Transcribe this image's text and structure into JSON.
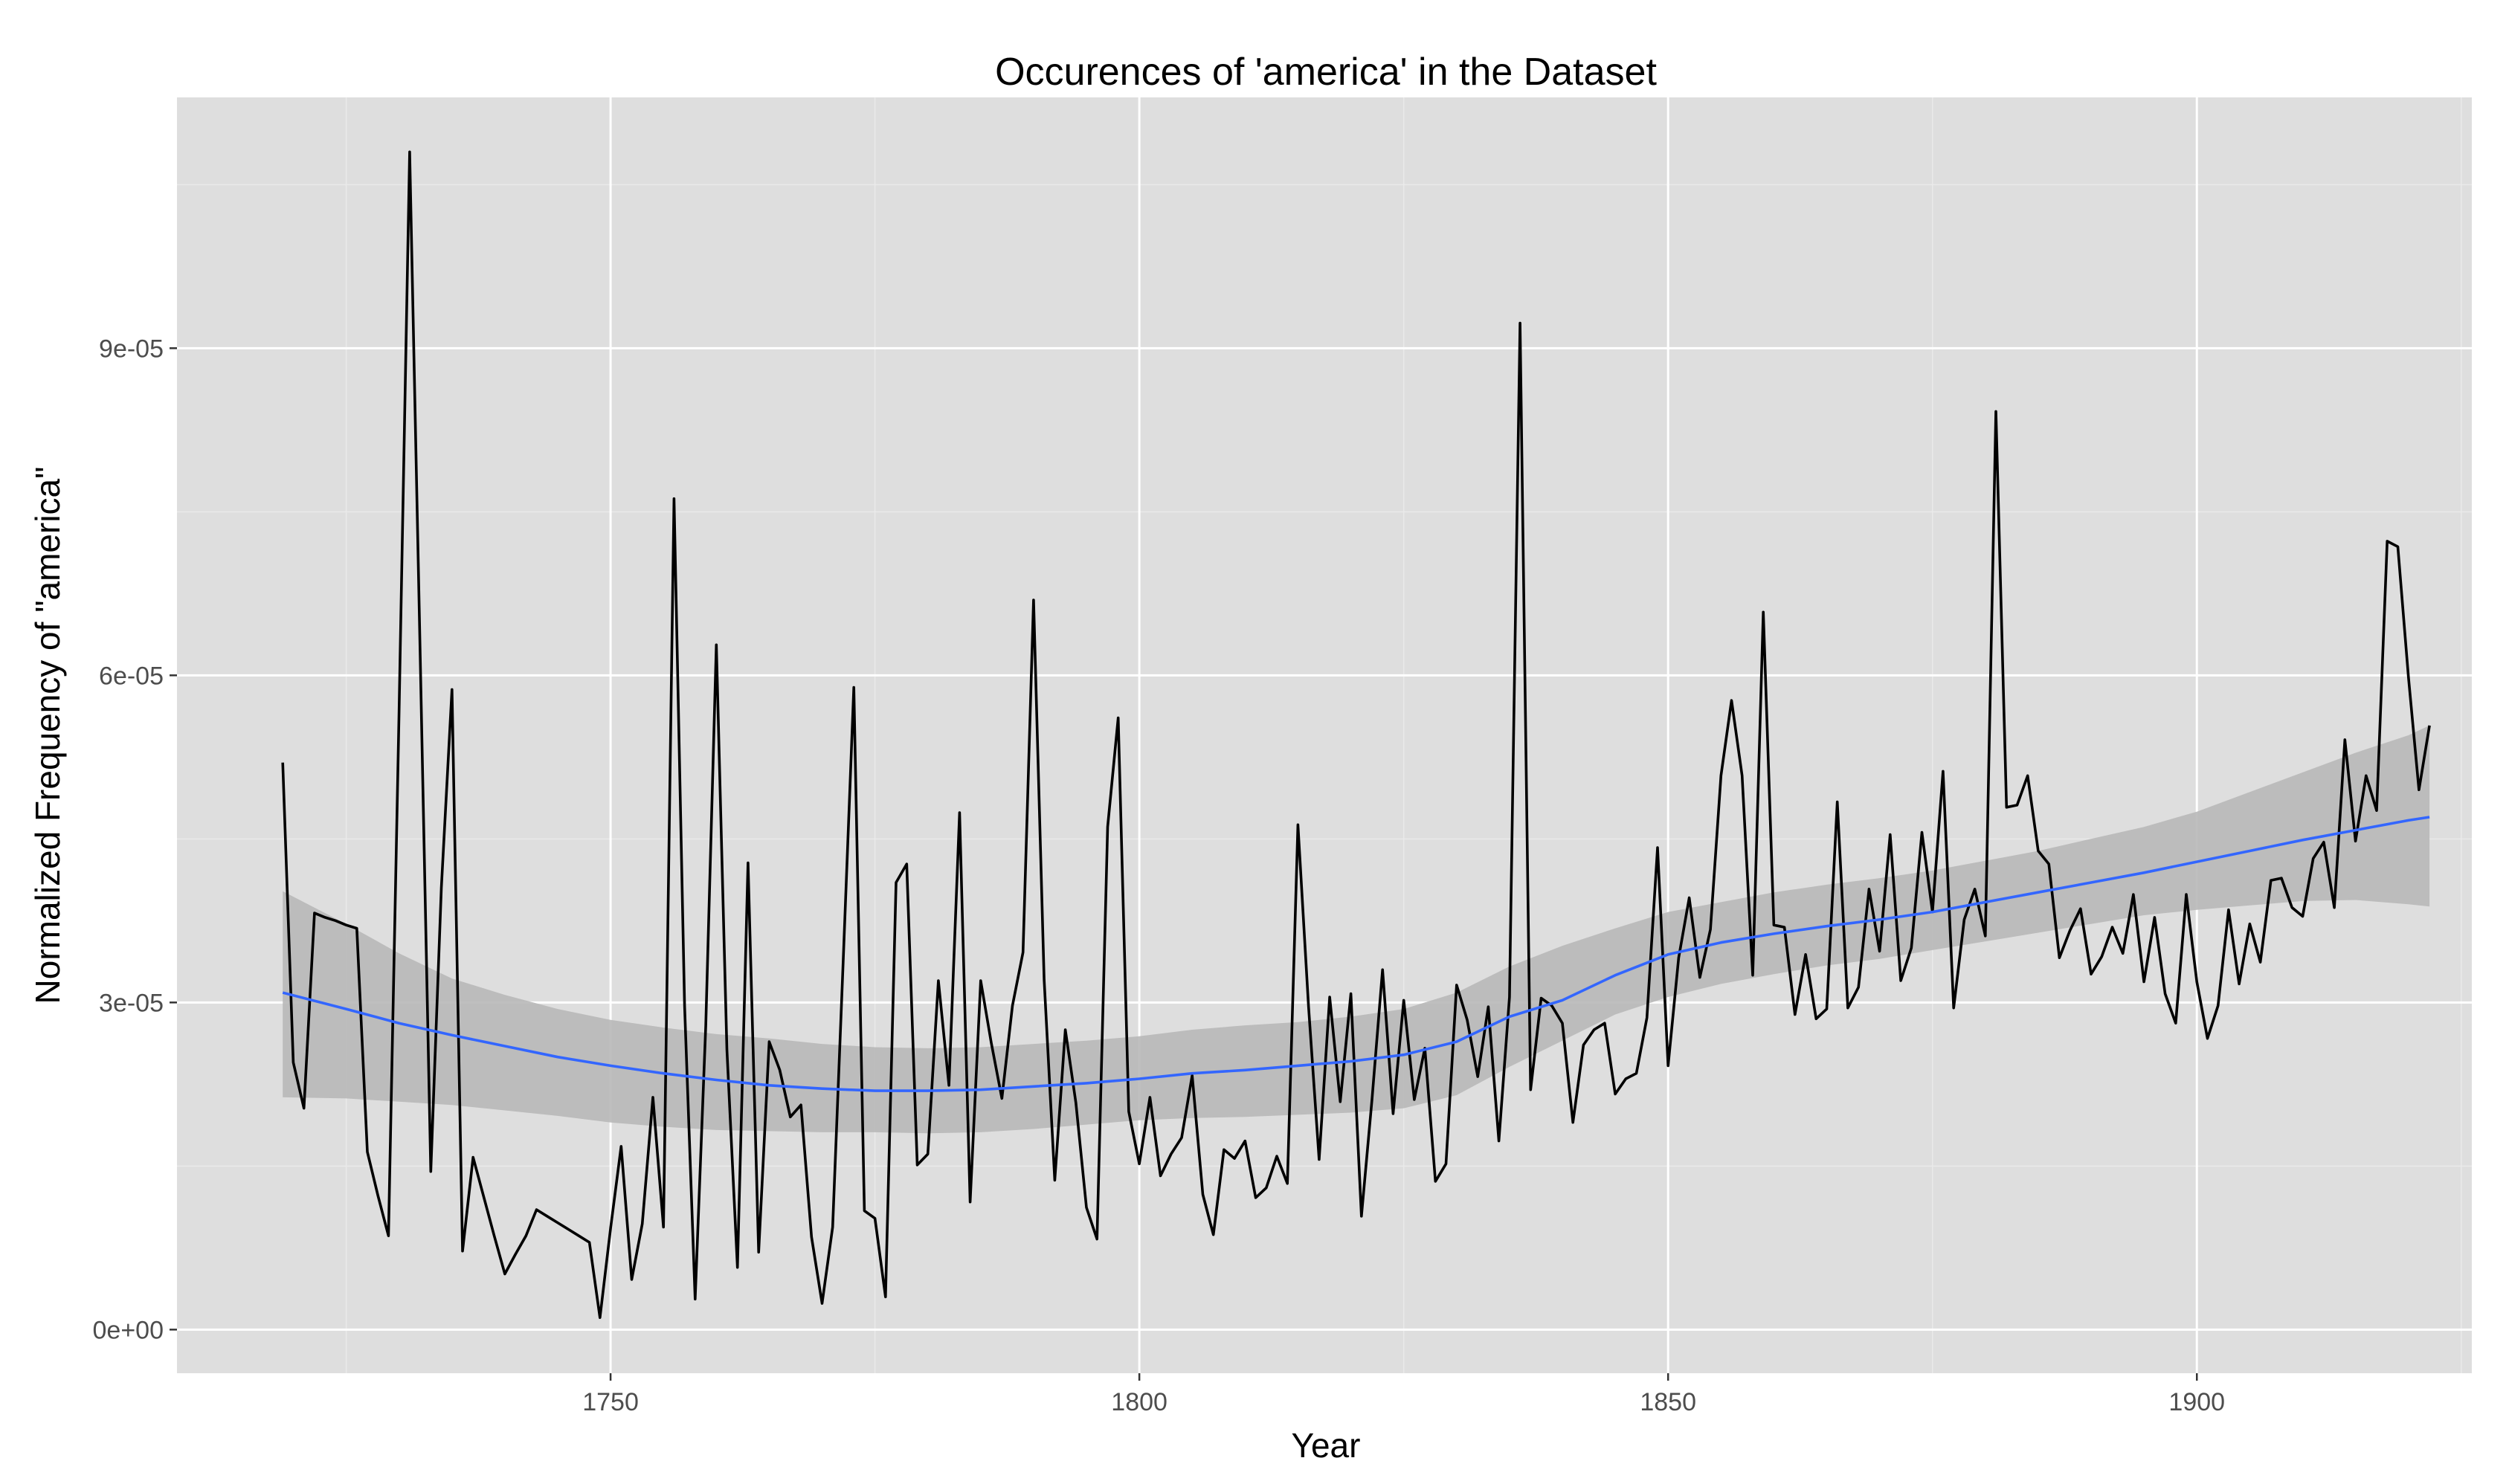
{
  "chart_data": {
    "type": "line",
    "title": "Occurences of 'america' in the Dataset",
    "xlabel": "Year",
    "ylabel": "Normalized Frequency of \"america\"",
    "xlim": [
      1709,
      1926
    ],
    "ylim": [
      -4e-06,
      0.000113
    ],
    "xticks": [
      1750,
      1800,
      1850,
      1900
    ],
    "xtick_labels": [
      "1750",
      "1800",
      "1850",
      "1900"
    ],
    "yticks": [
      0,
      3e-05,
      6e-05,
      9e-05
    ],
    "ytick_labels": [
      "0e+00",
      "3e-05",
      "6e-05",
      "9e-05"
    ],
    "grid": true,
    "legend": "none",
    "colors": {
      "panel_background": "#dedede",
      "grid_major": "#ffffff",
      "grid_minor": "#eaeaea",
      "series_line": "#000000",
      "smooth_line": "#3366ff",
      "confidence_band": "#b8b8b8"
    },
    "series": [
      {
        "x": [
          1719,
          1720,
          1721,
          1722,
          1723,
          1724,
          1725,
          1726,
          1727,
          1728,
          1729,
          1730,
          1731,
          1732,
          1733,
          1734,
          1735,
          1736,
          1737,
          1738,
          1739,
          1740,
          1741,
          1742,
          1743,
          1744,
          1745,
          1746,
          1747,
          1748,
          1749,
          1750,
          1751,
          1752,
          1753,
          1754,
          1755,
          1756,
          1757,
          1758,
          1759,
          1760,
          1761,
          1762,
          1763,
          1764,
          1765,
          1766,
          1767,
          1768,
          1769,
          1770,
          1771,
          1772,
          1773,
          1774,
          1775,
          1776,
          1777,
          1778,
          1779,
          1780,
          1781,
          1782,
          1783,
          1784,
          1785,
          1786,
          1787,
          1788,
          1789,
          1790,
          1791,
          1792,
          1793,
          1794,
          1795,
          1796,
          1797,
          1798,
          1799,
          1800,
          1801,
          1802,
          1803,
          1804,
          1805,
          1806,
          1807,
          1808,
          1809,
          1810,
          1811,
          1812,
          1813,
          1814,
          1815,
          1816,
          1817,
          1818,
          1819,
          1820,
          1821,
          1822,
          1823,
          1824,
          1825,
          1826,
          1827,
          1828,
          1829,
          1830,
          1831,
          1832,
          1833,
          1834,
          1835,
          1836,
          1837,
          1838,
          1839,
          1840,
          1841,
          1842,
          1843,
          1844,
          1845,
          1846,
          1847,
          1848,
          1849,
          1850,
          1851,
          1852,
          1853,
          1854,
          1855,
          1856,
          1857,
          1858,
          1859,
          1860,
          1861,
          1862,
          1863,
          1864,
          1865,
          1866,
          1867,
          1868,
          1869,
          1870,
          1871,
          1872,
          1873,
          1874,
          1875,
          1876,
          1877,
          1878,
          1879,
          1880,
          1881,
          1882,
          1883,
          1884,
          1885,
          1886,
          1887,
          1888,
          1889,
          1890,
          1891,
          1892,
          1893,
          1894,
          1895,
          1896,
          1897,
          1898,
          1899,
          1900,
          1901,
          1902,
          1903,
          1904,
          1905,
          1906,
          1907,
          1908,
          1909,
          1910,
          1911,
          1912,
          1913,
          1914,
          1915,
          1916,
          1917,
          1918,
          1919,
          1920,
          1921,
          1922
        ],
        "y": [
          5.2e-05,
          2.45e-05,
          2.03e-05,
          3.82e-05,
          3.78e-05,
          3.75e-05,
          3.71e-05,
          3.68e-05,
          1.63e-05,
          1.23e-05,
          8.6e-06,
          5.65e-05,
          0.000108,
          6.17e-05,
          1.45e-05,
          4.05e-05,
          5.87e-05,
          7.2e-06,
          1.58e-05,
          1.22e-05,
          8.6e-06,
          5.1e-06,
          6.9e-06,
          8.6e-06,
          1.1e-05,
          1.04e-05,
          9.8e-06,
          9.2e-06,
          8.6e-06,
          8e-06,
          1.1e-06,
          9.3e-06,
          1.68e-05,
          4.6e-06,
          9.7e-06,
          2.13e-05,
          9.4e-06,
          7.62e-05,
          2.97e-05,
          2.8e-06,
          2.79e-05,
          6.28e-05,
          2.57e-05,
          5.7e-06,
          4.28e-05,
          7.1e-06,
          2.64e-05,
          2.38e-05,
          1.95e-05,
          2.06e-05,
          8.5e-06,
          2.4e-06,
          9.4e-06,
          3.38e-05,
          5.89e-05,
          1.09e-05,
          1.02e-05,
          3e-06,
          4.1e-05,
          4.27e-05,
          1.51e-05,
          1.61e-05,
          3.2e-05,
          2.24e-05,
          4.74e-05,
          1.17e-05,
          3.2e-05,
          2.63e-05,
          2.12e-05,
          2.97e-05,
          3.46e-05,
          6.69e-05,
          3.21e-05,
          1.37e-05,
          2.75e-05,
          2.08e-05,
          1.12e-05,
          8.3e-06,
          4.61e-05,
          5.61e-05,
          2e-05,
          1.52e-05,
          2.13e-05,
          1.41e-05,
          1.61e-05,
          1.76e-05,
          2.33e-05,
          1.24e-05,
          8.7e-06,
          1.65e-05,
          1.57e-05,
          1.73e-05,
          1.21e-05,
          1.3e-05,
          1.59e-05,
          1.34e-05,
          4.63e-05,
          2.96e-05,
          1.56e-05,
          3.05e-05,
          2.09e-05,
          3.08e-05,
          1.04e-05,
          2.11e-05,
          3.3e-05,
          1.98e-05,
          3.02e-05,
          2.11e-05,
          2.58e-05,
          1.36e-05,
          1.52e-05,
          3.16e-05,
          2.84e-05,
          2.32e-05,
          2.96e-05,
          1.73e-05,
          3.05e-05,
          9.23e-05,
          2.2e-05,
          3.04e-05,
          2.97e-05,
          2.81e-05,
          1.9e-05,
          2.61e-05,
          2.75e-05,
          2.81e-05,
          2.16e-05,
          2.3e-05,
          2.35e-05,
          2.86e-05,
          4.42e-05,
          2.42e-05,
          3.41e-05,
          3.96e-05,
          3.23e-05,
          3.67e-05,
          5.08e-05,
          5.77e-05,
          5.08e-05,
          3.25e-05,
          6.58e-05,
          3.71e-05,
          3.69e-05,
          2.89e-05,
          3.44e-05,
          2.85e-05,
          2.94e-05,
          4.84e-05,
          2.95e-05,
          3.14e-05,
          4.04e-05,
          3.47e-05,
          4.54e-05,
          3.2e-05,
          3.5e-05,
          4.56e-05,
          3.83e-05,
          5.12e-05,
          2.95e-05,
          3.76e-05,
          4.04e-05,
          3.61e-05,
          8.42e-05,
          4.79e-05,
          4.81e-05,
          5.08e-05,
          4.39e-05,
          4.27e-05,
          3.41e-05,
          3.66e-05,
          3.86e-05,
          3.26e-05,
          3.42e-05,
          3.69e-05,
          3.45e-05,
          3.99e-05,
          3.19e-05,
          3.78e-05,
          3.08e-05,
          2.81e-05,
          3.99e-05,
          3.19e-05,
          2.67e-05,
          2.97e-05,
          3.85e-05,
          3.17e-05,
          3.72e-05,
          3.37e-05,
          4.12e-05,
          4.14e-05,
          3.87e-05,
          3.79e-05,
          4.32e-05,
          4.47e-05,
          3.87e-05,
          5.41e-05,
          4.48e-05,
          5.08e-05,
          4.76e-05,
          7.23e-05,
          7.18e-05,
          5.99e-05,
          4.95e-05,
          5.54e-05
        ]
      },
      {
        "x": [
          1719,
          1725,
          1730,
          1735,
          1740,
          1745,
          1750,
          1755,
          1760,
          1765,
          1770,
          1775,
          1780,
          1785,
          1790,
          1795,
          1800,
          1805,
          1810,
          1815,
          1820,
          1825,
          1830,
          1835,
          1840,
          1845,
          1850,
          1855,
          1860,
          1865,
          1870,
          1875,
          1880,
          1885,
          1890,
          1895,
          1900,
          1905,
          1910,
          1915,
          1920,
          1922
        ],
        "y": [
          3.09e-05,
          2.94e-05,
          2.81e-05,
          2.7e-05,
          2.6e-05,
          2.5e-05,
          2.42e-05,
          2.35e-05,
          2.29e-05,
          2.24e-05,
          2.21e-05,
          2.19e-05,
          2.19e-05,
          2.2e-05,
          2.23e-05,
          2.26e-05,
          2.3e-05,
          2.35e-05,
          2.38e-05,
          2.42e-05,
          2.46e-05,
          2.52e-05,
          2.64e-05,
          2.87e-05,
          3.02e-05,
          3.25e-05,
          3.44e-05,
          3.55e-05,
          3.63e-05,
          3.7e-05,
          3.76e-05,
          3.83e-05,
          3.92e-05,
          4.01e-05,
          4.1e-05,
          4.19e-05,
          4.29e-05,
          4.39e-05,
          4.49e-05,
          4.58e-05,
          4.67e-05,
          4.7e-05
        ],
        "lower": [
          2.13e-05,
          2.12e-05,
          2.09e-05,
          2.06e-05,
          2.01e-05,
          1.96e-05,
          1.9e-05,
          1.86e-05,
          1.83e-05,
          1.82e-05,
          1.81e-05,
          1.81e-05,
          1.8e-05,
          1.81e-05,
          1.84e-05,
          1.88e-05,
          1.92e-05,
          1.94e-05,
          1.95e-05,
          1.97e-05,
          1.99e-05,
          2.03e-05,
          2.15e-05,
          2.41e-05,
          2.65e-05,
          2.89e-05,
          3.05e-05,
          3.17e-05,
          3.26e-05,
          3.34e-05,
          3.4e-05,
          3.48e-05,
          3.56e-05,
          3.64e-05,
          3.72e-05,
          3.8e-05,
          3.85e-05,
          3.89e-05,
          3.93e-05,
          3.94e-05,
          3.9e-05,
          3.88e-05
        ],
        "upper": [
          4.02e-05,
          3.72e-05,
          3.45e-05,
          3.22e-05,
          3.07e-05,
          2.94e-05,
          2.84e-05,
          2.77e-05,
          2.71e-05,
          2.67e-05,
          2.62e-05,
          2.59e-05,
          2.58e-05,
          2.59e-05,
          2.62e-05,
          2.65e-05,
          2.69e-05,
          2.75e-05,
          2.79e-05,
          2.82e-05,
          2.87e-05,
          2.94e-05,
          3.09e-05,
          3.33e-05,
          3.52e-05,
          3.68e-05,
          3.83e-05,
          3.92e-05,
          4.01e-05,
          4.08e-05,
          4.14e-05,
          4.21e-05,
          4.3e-05,
          4.39e-05,
          4.5e-05,
          4.61e-05,
          4.75e-05,
          4.93e-05,
          5.11e-05,
          5.29e-05,
          5.45e-05,
          5.54e-05
        ]
      }
    ]
  }
}
